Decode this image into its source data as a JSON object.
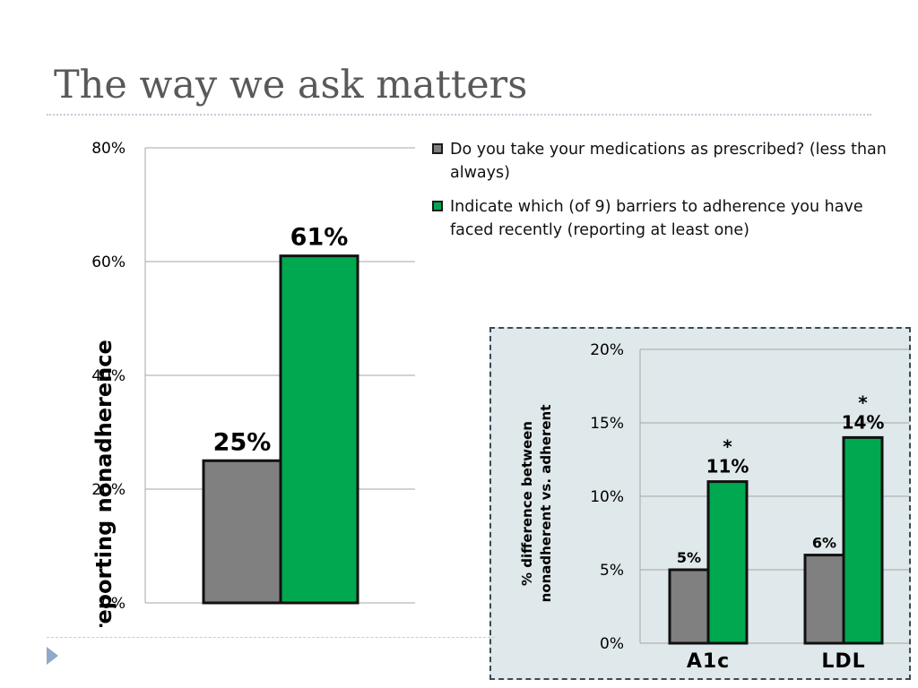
{
  "slide": {
    "title": "The way we ask matters"
  },
  "colors": {
    "gray_series": "#808080",
    "green_series": "#00a84f",
    "bar_outline": "#111111",
    "grid": "#a6a6a6",
    "inset_bg": "#dfe8ea"
  },
  "legend": [
    {
      "label": "Do you take your medications as prescribed? (less than always)",
      "color": "#808080"
    },
    {
      "label": "Indicate which (of 9) barriers to  adherence you have faced recently (reporting at least one)",
      "color": "#00a84f"
    }
  ],
  "chart_data": [
    {
      "type": "bar",
      "ylabel": "% reporting nonadherence",
      "ylim": [
        0,
        80
      ],
      "yticks": [
        "0%",
        "20%",
        "40%",
        "60%",
        "80%"
      ],
      "grid": true,
      "categories": [
        ""
      ],
      "series": [
        {
          "name": "Do you take your medications as prescribed? (less than always)",
          "values": [
            25
          ],
          "labels": [
            "25%"
          ]
        },
        {
          "name": "Indicate which (of 9) barriers to  adherence you have faced recently (reporting at least one)",
          "values": [
            61
          ],
          "labels": [
            "61%"
          ]
        }
      ]
    },
    {
      "type": "bar",
      "ylabel_lines": [
        "% difference between",
        "nonadherent vs. adherent"
      ],
      "ylim": [
        0,
        20
      ],
      "yticks": [
        "0%",
        "5%",
        "10%",
        "15%",
        "20%"
      ],
      "grid": true,
      "categories": [
        "A1c",
        "LDL"
      ],
      "series": [
        {
          "name": "Do you take your medications as prescribed? (less than always)",
          "values": [
            5,
            6
          ],
          "labels": [
            "5%",
            "6%"
          ]
        },
        {
          "name": "Indicate which (of 9) barriers to  adherence you have faced recently (reporting at least one)",
          "values": [
            11,
            14
          ],
          "labels": [
            "11%",
            "14%"
          ]
        }
      ],
      "annotations": [
        "*",
        "*"
      ]
    }
  ]
}
